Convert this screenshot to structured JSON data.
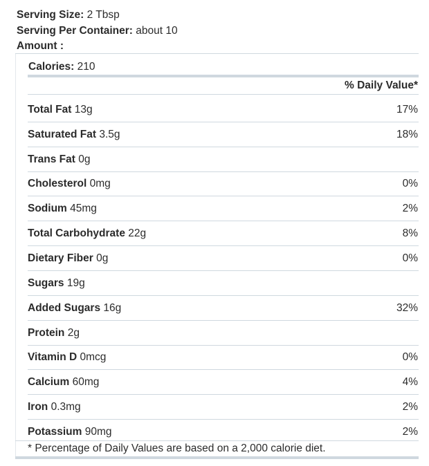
{
  "header": {
    "serving_size_label": "Serving Size:",
    "serving_size_value": "2 Tbsp",
    "servings_label": "Serving Per Container:",
    "servings_value": "about 10",
    "amount_label": "Amount :"
  },
  "calories": {
    "label": "Calories:",
    "value": "210"
  },
  "dv_header": "% Daily Value*",
  "nutrients": [
    {
      "name": "Total Fat",
      "amount": "13g",
      "dv": "17%"
    },
    {
      "name": "Saturated Fat",
      "amount": "3.5g",
      "dv": "18%"
    },
    {
      "name": "Trans Fat",
      "amount": "0g",
      "dv": ""
    },
    {
      "name": "Cholesterol",
      "amount": "0mg",
      "dv": "0%"
    },
    {
      "name": "Sodium",
      "amount": "45mg",
      "dv": "2%"
    },
    {
      "name": "Total Carbohydrate",
      "amount": "22g",
      "dv": "8%"
    },
    {
      "name": "Dietary Fiber",
      "amount": "0g",
      "dv": "0%"
    },
    {
      "name": "Sugars",
      "amount": "19g",
      "dv": ""
    },
    {
      "name": "Added Sugars",
      "amount": "16g",
      "dv": "32%"
    },
    {
      "name": "Protein",
      "amount": "2g",
      "dv": ""
    },
    {
      "name": "Vitamin D",
      "amount": "0mcg",
      "dv": "0%"
    },
    {
      "name": "Calcium",
      "amount": "60mg",
      "dv": "4%"
    },
    {
      "name": "Iron",
      "amount": "0.3mg",
      "dv": "2%"
    },
    {
      "name": "Potassium",
      "amount": "90mg",
      "dv": "2%"
    }
  ],
  "footnote": "* Percentage of Daily Values are based on a 2,000 calorie diet."
}
